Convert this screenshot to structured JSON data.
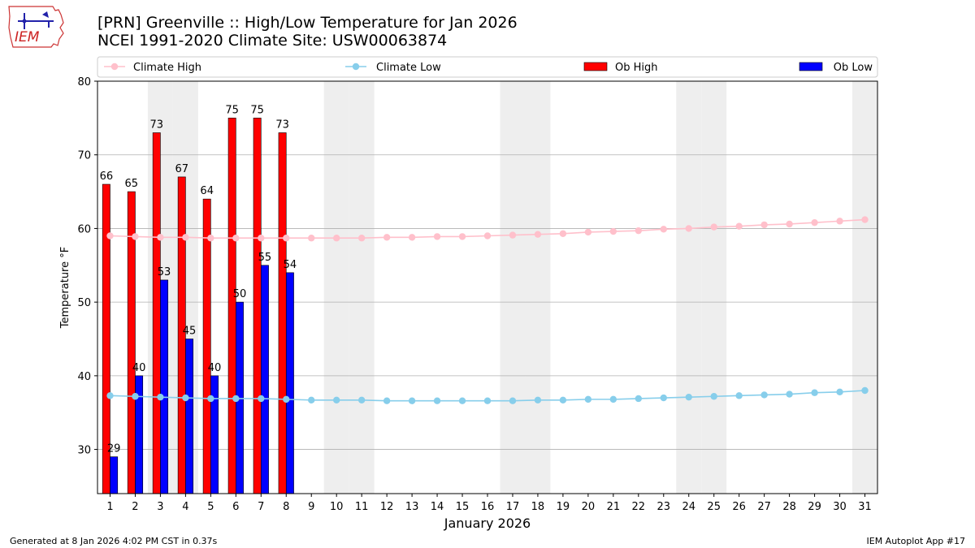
{
  "header": {
    "title_line1": "[PRN] Greenville :: High/Low Temperature for Jan 2026",
    "title_line2": "NCEI 1991-2020 Climate Site: USW00063874",
    "logo_text": "IEM"
  },
  "footer": {
    "left": "Generated at 8 Jan 2026 4:02 PM CST in 0.37s",
    "right": "IEM Autoplot App #17"
  },
  "colors": {
    "ob_high": "#ff0000",
    "ob_low": "#0000ff",
    "climate_high": "#ffc0cb",
    "climate_low": "#87ceeb",
    "weekend_band": "#eeeeee",
    "grid": "#b0b0b0"
  },
  "chart_data": {
    "type": "bar",
    "xlabel": "January 2026",
    "ylabel": "Temperature °F",
    "xlim": [
      0.5,
      31.5
    ],
    "ylim": [
      24,
      80
    ],
    "yticks": [
      30,
      40,
      50,
      60,
      70,
      80
    ],
    "grid": "horizontal",
    "legend_position": "top",
    "days": [
      1,
      2,
      3,
      4,
      5,
      6,
      7,
      8,
      9,
      10,
      11,
      12,
      13,
      14,
      15,
      16,
      17,
      18,
      19,
      20,
      21,
      22,
      23,
      24,
      25,
      26,
      27,
      28,
      29,
      30,
      31
    ],
    "weekend_days": [
      3,
      4,
      10,
      11,
      17,
      18,
      24,
      25,
      31
    ],
    "ob_high": {
      "name": "Ob High",
      "days": [
        1,
        2,
        3,
        4,
        5,
        6,
        7,
        8
      ],
      "values": [
        66,
        65,
        73,
        67,
        64,
        75,
        75,
        73
      ]
    },
    "ob_low": {
      "name": "Ob Low",
      "days": [
        1,
        2,
        3,
        4,
        5,
        6,
        7,
        8
      ],
      "values": [
        29,
        40,
        53,
        45,
        40,
        50,
        55,
        54
      ]
    },
    "climate_high": {
      "name": "Climate High",
      "values": [
        59.0,
        58.9,
        58.8,
        58.8,
        58.7,
        58.7,
        58.7,
        58.7,
        58.7,
        58.7,
        58.7,
        58.8,
        58.8,
        58.9,
        58.9,
        59.0,
        59.1,
        59.2,
        59.3,
        59.5,
        59.6,
        59.7,
        59.9,
        60.0,
        60.2,
        60.3,
        60.5,
        60.6,
        60.8,
        61.0,
        61.2
      ]
    },
    "climate_low": {
      "name": "Climate Low",
      "values": [
        37.3,
        37.2,
        37.1,
        37.0,
        36.9,
        36.9,
        36.9,
        36.8,
        36.7,
        36.7,
        36.7,
        36.6,
        36.6,
        36.6,
        36.6,
        36.6,
        36.6,
        36.7,
        36.7,
        36.8,
        36.8,
        36.9,
        37.0,
        37.1,
        37.2,
        37.3,
        37.4,
        37.5,
        37.7,
        37.8,
        38.0
      ]
    }
  }
}
